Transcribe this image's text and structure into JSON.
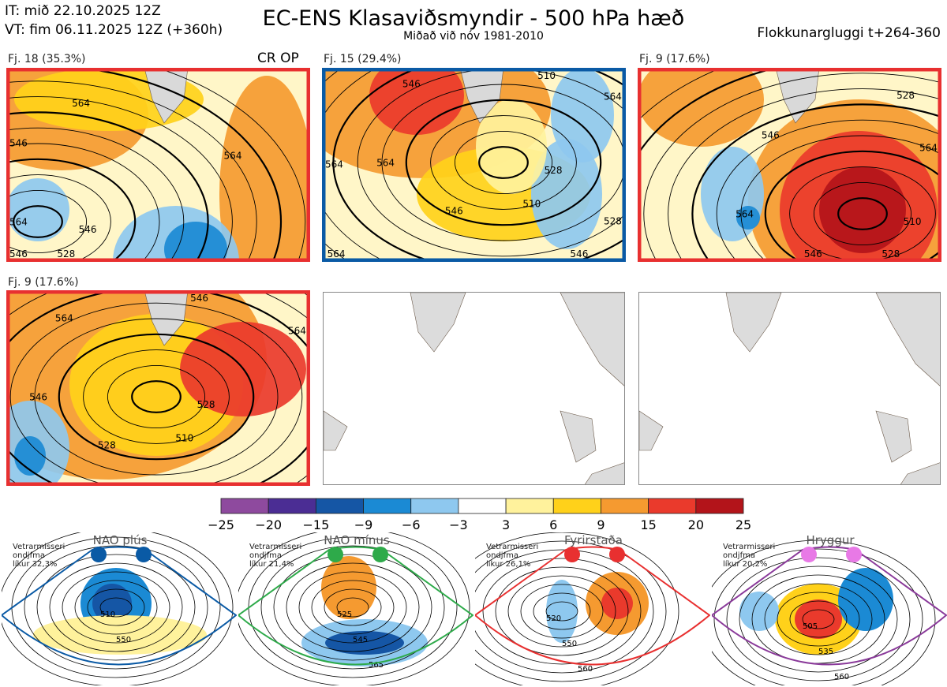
{
  "header": {
    "init_time": "IT: mið 22.10.2025 12Z",
    "valid_time": "VT: fim 06.11.2025 12Z  (+360h)",
    "title": "EC-ENS Klasaviðsmyndir - 500 hPa hæð",
    "subtitle": "Miðað við nóv 1981-2010",
    "window": "Flokkunargluggi t+264-360"
  },
  "panels": [
    {
      "label": "Fj. 18 (35.3%)",
      "tag": "CR OP",
      "frame_color": "#e83030",
      "contours": [
        "546",
        "528",
        "546",
        "564",
        "546",
        "564",
        "564"
      ]
    },
    {
      "label": "Fj. 15 (29.4%)",
      "frame_color": "#0a5aa5",
      "contours": [
        "528",
        "510",
        "546",
        "564",
        "546",
        "510",
        "564",
        "528",
        "546",
        "564",
        "564"
      ]
    },
    {
      "label": "Fj. 9 (17.6%)",
      "frame_color": "#e83030",
      "contours": [
        "510",
        "528",
        "546",
        "564",
        "546",
        "528",
        "564"
      ]
    },
    {
      "label": "Fj. 9 (17.6%)",
      "frame_color": "#e83030",
      "contours": [
        "528",
        "510",
        "528",
        "546",
        "564",
        "546",
        "564"
      ]
    }
  ],
  "colorbar": {
    "colors": [
      "#8e4a9e",
      "#4b2d94",
      "#1556a5",
      "#1b8ad4",
      "#8ec8ef",
      "#ffffff",
      "#fff29c",
      "#ffd11a",
      "#f59a30",
      "#ea3a2c",
      "#b3141a"
    ],
    "labels": [
      "−25",
      "−20",
      "−15",
      "−9",
      "−6",
      "−3",
      "3",
      "6",
      "9",
      "15",
      "20",
      "25"
    ]
  },
  "regimes": [
    {
      "title": "NAO plús",
      "note": "Vetrarmisseri\nondjfma\nlíkur 32,3%",
      "color": "#0a5aa5",
      "dot_color": "#0a5aa5",
      "contours": [
        "510",
        "550"
      ]
    },
    {
      "title": "NAO mínus",
      "note": "Vetrarmisseri\nondjfma\nlíkur 21,4%",
      "color": "#2eaa4a",
      "dot_color": "#2eaa4a",
      "contours": [
        "525",
        "545",
        "565"
      ]
    },
    {
      "title": "Fyrirstaða",
      "note": "Vetrarmisseri\nondjfma\nlíkur 26,1%",
      "color": "#e83030",
      "dot_color": "#e83030",
      "contours": [
        "520",
        "550",
        "560"
      ]
    },
    {
      "title": "Hryggur",
      "note": "Vetrarmisseri\nondjfma\nlíkur 20,2%",
      "color": "#8a3a9a",
      "dot_color": "#e879e6",
      "contours": [
        "505",
        "535",
        "560"
      ]
    }
  ]
}
